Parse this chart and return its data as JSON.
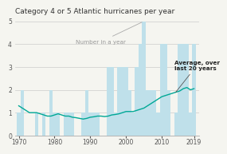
{
  "title": "Category 4 or 5 Atlantic hurricanes per year",
  "years": [
    1970,
    1971,
    1972,
    1973,
    1974,
    1975,
    1976,
    1977,
    1978,
    1979,
    1980,
    1981,
    1982,
    1983,
    1984,
    1985,
    1986,
    1987,
    1988,
    1989,
    1990,
    1991,
    1992,
    1993,
    1994,
    1995,
    1996,
    1997,
    1998,
    1999,
    2000,
    2001,
    2002,
    2003,
    2004,
    2005,
    2006,
    2007,
    2008,
    2009,
    2010,
    2011,
    2012,
    2013,
    2014,
    2015,
    2016,
    2017,
    2018,
    2019
  ],
  "bar_values": [
    1,
    2,
    0,
    0,
    0,
    1,
    0,
    1,
    0,
    2,
    1,
    1,
    0,
    1,
    1,
    1,
    0,
    0,
    1,
    2,
    1,
    1,
    1,
    0,
    0,
    3,
    3,
    1,
    3,
    3,
    3,
    2,
    1,
    3,
    4,
    5,
    2,
    2,
    2,
    1,
    4,
    4,
    2,
    0,
    1,
    4,
    4,
    4,
    1,
    4
  ],
  "avg_line": [
    1.3,
    1.2,
    1.1,
    1.0,
    1.0,
    1.0,
    0.95,
    0.9,
    0.85,
    0.85,
    0.9,
    0.95,
    0.9,
    0.85,
    0.85,
    0.8,
    0.78,
    0.75,
    0.72,
    0.75,
    0.8,
    0.82,
    0.85,
    0.85,
    0.83,
    0.85,
    0.9,
    0.92,
    0.95,
    1.0,
    1.05,
    1.05,
    1.05,
    1.1,
    1.15,
    1.2,
    1.3,
    1.4,
    1.5,
    1.6,
    1.7,
    1.75,
    1.8,
    1.85,
    1.9,
    1.95,
    2.05,
    2.1,
    2.0,
    2.05
  ],
  "bar_color": "#bfe0ea",
  "line_color": "#00a896",
  "title_fontsize": 6.5,
  "tick_fontsize": 5.5,
  "annotation_fontsize": 5.2,
  "ylim": [
    0,
    5.2
  ],
  "yticks": [
    0,
    1,
    2,
    3,
    4,
    5
  ],
  "xticks": [
    1970,
    1980,
    1990,
    2000,
    2010,
    2019
  ],
  "background_color": "#f5f5f0",
  "ann1_text": "Number in a year",
  "ann1_text_color": "#999999",
  "ann2_text": "Average, over\nlast 20 years",
  "ann2_text_color": "#222222"
}
